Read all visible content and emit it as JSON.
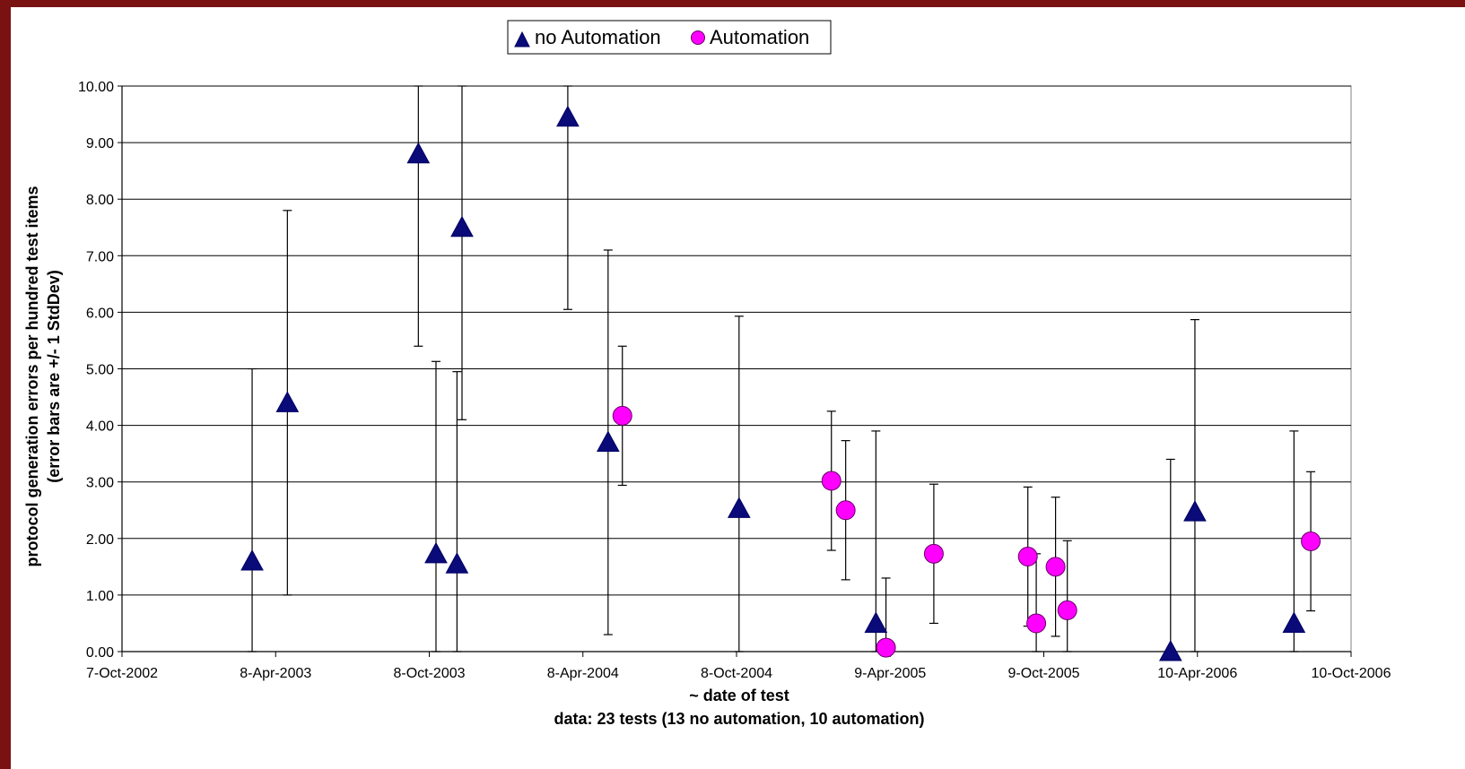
{
  "chart_data": {
    "type": "scatter",
    "xlabel": "~ date of test",
    "subtitle": "data:  23 tests (13 no automation, 10 automation)",
    "ylabel_line1": "protocol generation errors per hundred test items",
    "ylabel_line2": "(error bars are +/- 1 StdDev)",
    "xlim": [
      "2002-10-07",
      "2006-10-10"
    ],
    "x_ticks": [
      "7-Oct-2002",
      "8-Apr-2003",
      "8-Oct-2003",
      "8-Apr-2004",
      "8-Oct-2004",
      "9-Apr-2005",
      "9-Oct-2005",
      "10-Apr-2006",
      "10-Oct-2006"
    ],
    "x_tick_dates": [
      "2002-10-07",
      "2003-04-08",
      "2003-10-08",
      "2004-04-08",
      "2004-10-08",
      "2005-04-09",
      "2005-10-09",
      "2006-04-10",
      "2006-10-10"
    ],
    "ylim": [
      0,
      10
    ],
    "y_ticks": [
      "0.00",
      "1.00",
      "2.00",
      "3.00",
      "4.00",
      "5.00",
      "6.00",
      "7.00",
      "8.00",
      "9.00",
      "10.00"
    ],
    "grid": "horizontal",
    "legend_position": "top",
    "series": [
      {
        "name": "no Automation",
        "marker": "triangle",
        "color": "#0a0a78",
        "error_bar": 3.4,
        "points": [
          {
            "x": "2003-03-11",
            "y": 1.6
          },
          {
            "x": "2003-04-22",
            "y": 4.4
          },
          {
            "x": "2003-09-25",
            "y": 8.8
          },
          {
            "x": "2003-10-16",
            "y": 1.73
          },
          {
            "x": "2003-11-10",
            "y": 1.55
          },
          {
            "x": "2003-11-16",
            "y": 7.5
          },
          {
            "x": "2004-03-21",
            "y": 9.45
          },
          {
            "x": "2004-05-08",
            "y": 3.7
          },
          {
            "x": "2004-10-11",
            "y": 2.53
          },
          {
            "x": "2005-03-23",
            "y": 0.5
          },
          {
            "x": "2006-03-09",
            "y": 0.0
          },
          {
            "x": "2006-04-07",
            "y": 2.47
          },
          {
            "x": "2006-08-03",
            "y": 0.5
          }
        ]
      },
      {
        "name": "Automation",
        "marker": "circle",
        "color": "#ff00ff",
        "error_bar": 1.23,
        "points": [
          {
            "x": "2004-05-25",
            "y": 4.17
          },
          {
            "x": "2005-01-29",
            "y": 3.02
          },
          {
            "x": "2005-02-15",
            "y": 2.5
          },
          {
            "x": "2005-04-04",
            "y": 0.07
          },
          {
            "x": "2005-05-31",
            "y": 1.73
          },
          {
            "x": "2005-09-20",
            "y": 1.68
          },
          {
            "x": "2005-09-30",
            "y": 0.5
          },
          {
            "x": "2005-10-23",
            "y": 1.5
          },
          {
            "x": "2005-11-06",
            "y": 0.73
          },
          {
            "x": "2006-08-23",
            "y": 1.95
          }
        ]
      }
    ]
  }
}
